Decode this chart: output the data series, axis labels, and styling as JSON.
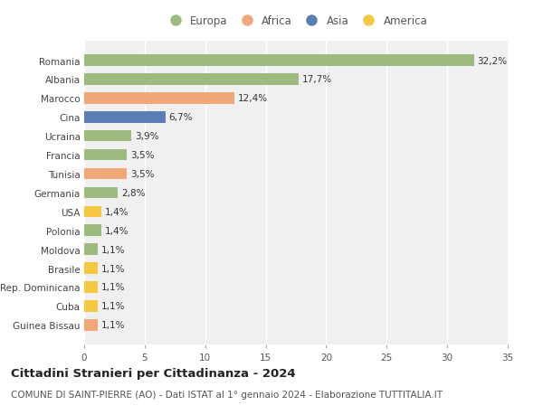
{
  "categories": [
    "Guinea Bissau",
    "Cuba",
    "Rep. Dominicana",
    "Brasile",
    "Moldova",
    "Polonia",
    "USA",
    "Germania",
    "Tunisia",
    "Francia",
    "Ucraina",
    "Cina",
    "Marocco",
    "Albania",
    "Romania"
  ],
  "values": [
    1.1,
    1.1,
    1.1,
    1.1,
    1.1,
    1.4,
    1.4,
    2.8,
    3.5,
    3.5,
    3.9,
    6.7,
    12.4,
    17.7,
    32.2
  ],
  "labels": [
    "1,1%",
    "1,1%",
    "1,1%",
    "1,1%",
    "1,1%",
    "1,4%",
    "1,4%",
    "2,8%",
    "3,5%",
    "3,5%",
    "3,9%",
    "6,7%",
    "12,4%",
    "17,7%",
    "32,2%"
  ],
  "continents": [
    "Africa",
    "America",
    "America",
    "America",
    "Europa",
    "Europa",
    "America",
    "Europa",
    "Africa",
    "Europa",
    "Europa",
    "Asia",
    "Africa",
    "Europa",
    "Europa"
  ],
  "continent_colors": {
    "Europa": "#9dba7f",
    "Africa": "#f0a87a",
    "Asia": "#5b7db5",
    "America": "#f5c842"
  },
  "legend_order": [
    "Europa",
    "Africa",
    "Asia",
    "America"
  ],
  "legend_colors": [
    "#9dba7f",
    "#f0a87a",
    "#5b7db5",
    "#f5c842"
  ],
  "xlim": [
    0,
    35
  ],
  "xticks": [
    0,
    5,
    10,
    15,
    20,
    25,
    30,
    35
  ],
  "title": "Cittadini Stranieri per Cittadinanza - 2024",
  "subtitle": "COMUNE DI SAINT-PIERRE (AO) - Dati ISTAT al 1° gennaio 2024 - Elaborazione TUTTITALIA.IT",
  "background_color": "#ffffff",
  "plot_background": "#f0f0f0",
  "grid_color": "#ffffff",
  "bar_height": 0.6,
  "label_fontsize": 7.5,
  "tick_fontsize": 7.5,
  "title_fontsize": 9.5,
  "subtitle_fontsize": 7.5
}
